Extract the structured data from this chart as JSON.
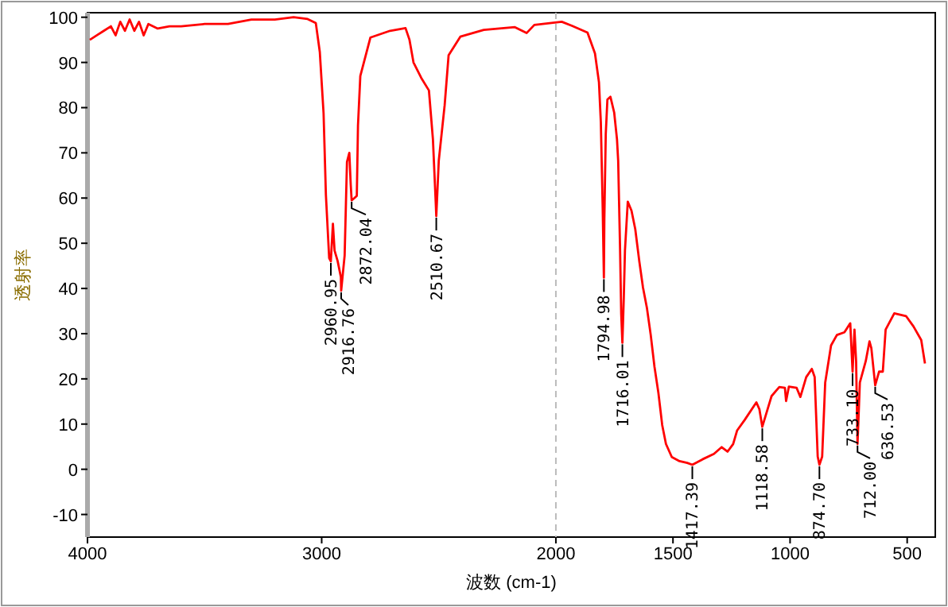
{
  "chart_data": {
    "type": "line",
    "xlabel": "波数 (cm-1)",
    "ylabel": "透射率",
    "xlim": [
      4000,
      380
    ],
    "ylim": [
      -15,
      101
    ],
    "xticks": [
      4000,
      3000,
      2000,
      1500,
      1000,
      500
    ],
    "yticks": [
      -10,
      0,
      10,
      20,
      30,
      40,
      50,
      60,
      70,
      80,
      90,
      100
    ],
    "grid": false,
    "marker": "none",
    "line_style": "solid",
    "ref_lines": [
      {
        "axis": "x",
        "value": 2000,
        "color": "#bbbbbb",
        "line_style": "dashed"
      }
    ],
    "series": [
      {
        "color": "#ff0000",
        "x": [
          3990,
          3960,
          3930,
          3900,
          3880,
          3860,
          3840,
          3820,
          3800,
          3780,
          3760,
          3740,
          3700,
          3650,
          3600,
          3500,
          3400,
          3300,
          3200,
          3120,
          3060,
          3025,
          3008,
          2992,
          2982,
          2968,
          2960.95,
          2952,
          2945,
          2932,
          2918,
          2916.76,
          2902,
          2892,
          2882,
          2876,
          2872.04,
          2860,
          2850,
          2845,
          2835,
          2792,
          2708,
          2642,
          2625,
          2608,
          2575,
          2542,
          2525,
          2513,
          2510.67,
          2500,
          2475,
          2458,
          2408,
          2308,
          2175,
          2125,
          2092,
          1975,
          1931,
          1865,
          1833,
          1816,
          1808,
          1800,
          1794.98,
          1793,
          1787,
          1780,
          1767,
          1751,
          1739,
          1734,
          1726,
          1721,
          1716.01,
          1710,
          1705,
          1693,
          1677,
          1661,
          1644,
          1628,
          1611,
          1595,
          1579,
          1562,
          1546,
          1530,
          1505,
          1472,
          1439,
          1417.39,
          1374,
          1325,
          1292,
          1267,
          1243,
          1226,
          1194,
          1144,
          1131,
          1118.58,
          1103,
          1079,
          1046,
          1022,
          1017,
          1005,
          972,
          956,
          931,
          907,
          895,
          882,
          874.7,
          863,
          850,
          825,
          800,
          768,
          743,
          733.1,
          725,
          718,
          712.0,
          702,
          677,
          661,
          653,
          636.53,
          620,
          604,
          592,
          555,
          505,
          473,
          440,
          424
        ],
        "values": [
          95,
          96,
          97,
          98,
          96,
          99,
          97,
          99.5,
          97,
          99,
          96,
          98.5,
          97.5,
          98,
          98,
          98.5,
          98.5,
          99.5,
          99.5,
          100,
          99.6,
          98.7,
          92.3,
          78.8,
          60.7,
          46.7,
          46,
          54.3,
          48.4,
          46.1,
          42.5,
          39.5,
          47.3,
          68,
          70,
          63,
          59.5,
          60,
          60.5,
          76,
          87,
          95.5,
          97,
          97.6,
          95,
          90,
          86.6,
          83.8,
          73,
          59,
          56,
          68.3,
          80.5,
          91.6,
          95.7,
          97.2,
          97.8,
          96.5,
          98.3,
          99,
          98.1,
          96.6,
          92,
          85.6,
          76.8,
          57.6,
          42.4,
          55.4,
          74.2,
          81.8,
          82.4,
          78.9,
          73,
          68.3,
          48.9,
          34.4,
          28,
          37.9,
          48.4,
          59.2,
          57.2,
          53.1,
          46.1,
          40.2,
          35.6,
          29.7,
          22.7,
          16.8,
          9.8,
          5.6,
          2.7,
          1.8,
          1.4,
          1.0,
          2.2,
          3.4,
          4.9,
          3.9,
          5.6,
          8.6,
          10.9,
          14.8,
          13.3,
          9.4,
          12.1,
          16.2,
          18.2,
          18,
          15.1,
          18.3,
          18,
          16,
          20.4,
          22.2,
          20.4,
          2.8,
          1.0,
          2.8,
          19.2,
          27.4,
          29.7,
          30.3,
          32.3,
          21.6,
          30.9,
          23.9,
          5.6,
          19.2,
          23.9,
          28.3,
          26.8,
          18.6,
          21.6,
          21.6,
          30.9,
          34.5,
          33.9,
          31.6,
          28.6,
          23.4
        ]
      }
    ],
    "annotations": [
      {
        "text": "2960.95",
        "x": 2960.95,
        "y": 46
      },
      {
        "text": "2916.76",
        "x": 2916.76,
        "y": 39.5
      },
      {
        "text": "2872.04",
        "x": 2872.04,
        "y": 59.5
      },
      {
        "text": "2510.67",
        "x": 2510.67,
        "y": 56
      },
      {
        "text": "1794.98",
        "x": 1794.98,
        "y": 42.4
      },
      {
        "text": "1716.01",
        "x": 1716.01,
        "y": 28
      },
      {
        "text": "1417.39",
        "x": 1417.39,
        "y": 1.0
      },
      {
        "text": "1118.58",
        "x": 1118.58,
        "y": 9.4
      },
      {
        "text": "874.70",
        "x": 874.7,
        "y": 1.0
      },
      {
        "text": "733.10",
        "x": 733.1,
        "y": 21.6
      },
      {
        "text": "712.00",
        "x": 712.0,
        "y": 5.6
      },
      {
        "text": "636.53",
        "x": 636.53,
        "y": 18.6
      }
    ]
  }
}
